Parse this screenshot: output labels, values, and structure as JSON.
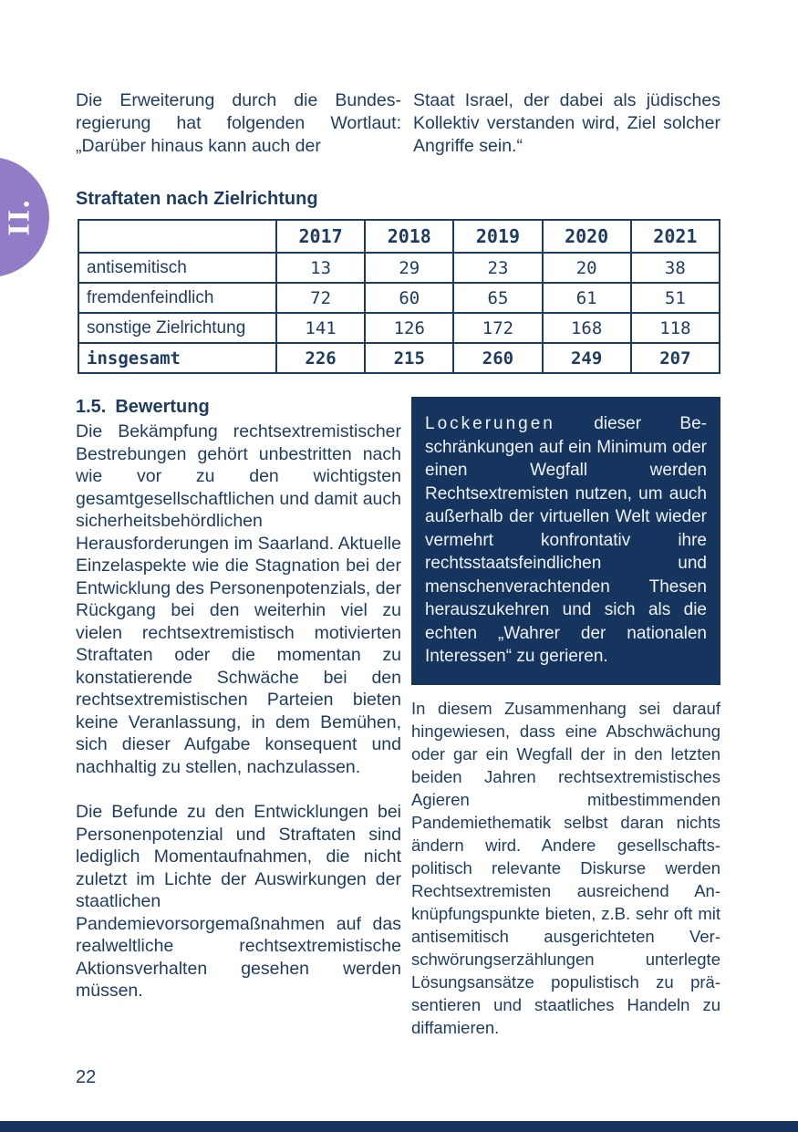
{
  "colors": {
    "text_navy": "#1e3c5f",
    "box_navy": "#15355e",
    "tab_purple": "#927cc7",
    "page_bg": "#ffffff"
  },
  "section_tab": {
    "label": "II."
  },
  "intro": {
    "left": "Die Erweiterung durch die Bundes­regierung hat folgenden Wortlaut: „Darüber hinaus kann auch der",
    "right": "Staat Israel, der dabei als jüdisches Kollektiv verstanden wird, Ziel sol­cher Angriffe sein.“"
  },
  "table_section": {
    "heading": "Straftaten nach Zielrichtung"
  },
  "table": {
    "columns": [
      "",
      "2017",
      "2018",
      "2019",
      "2020",
      "2021"
    ],
    "rows": [
      {
        "label": "antisemitisch",
        "values": [
          "13",
          "29",
          "23",
          "20",
          "38"
        ],
        "bold": false
      },
      {
        "label": "fremdenfeindlich",
        "values": [
          "72",
          "60",
          "65",
          "61",
          "51"
        ],
        "bold": false
      },
      {
        "label": "sonstige Zielrichtung",
        "values": [
          "141",
          "126",
          "172",
          "168",
          "118"
        ],
        "bold": false
      },
      {
        "label": "insgesamt",
        "values": [
          "226",
          "215",
          "260",
          "249",
          "207"
        ],
        "bold": true
      }
    ]
  },
  "bewertung": {
    "heading_number": "1.5.",
    "heading_text": "Bewertung",
    "paragraphs": [
      "Die Bekämpfung rechtsextremisti­scher Bestrebungen gehört unbe­stritten nach wie vor zu den wich­tigsten gesamtgesellschaftlichen und damit auch sicherheitsbe­hördlichen Herausforderungen im Saarland. Aktuelle Einzelaspekte wie die Stagnation bei der Entwick­lung des Personenpotenzials, der Rückgang bei den weiterhin viel zu vielen rechtsextremistisch moti­vierten Straftaten oder die momen­tan zu konstatierende Schwäche bei den rechtsextremistischen Par­teien bieten keine Veranlassung, in dem Bemühen, sich dieser Aufga­be konsequent und nachhaltig zu stellen, nachzulassen.",
      "Die Befunde zu den Entwicklungen bei Personenpotenzial und Strafta­ten sind lediglich Momentaufnah­men, die nicht zuletzt im Lichte der Auswirkungen der staatlichen Pandemievorsorgemaßnahmen auf das realweltliche rechtsextremis­tische Aktionsverhalten gesehen werden müssen."
    ]
  },
  "quote_box": {
    "lead": "Lockerungen",
    "rest": " dieser Be­schränkungen auf ein Minimum oder einen Wegfall werden Rechtsextremisten nutzen, um auch außerhalb der virtuellen Welt wieder vermehrt konfron­tativ ihre rechtsstaatsfeindli­chen und menschenverachten­den Thesen herauszukehren und sich als die echten „Wah­rer der nationalen Interessen“ zu gerieren."
  },
  "right_column": {
    "paragraph": "In diesem Zusammenhang sei darauf hingewiesen, dass eine Abschwä­chung oder gar ein Wegfall der in den letzten beiden Jahren rechtsextremis­tisches Agieren mitbestimmenden Pandemiethematik selbst daran nichts ändern wird. Andere gesellschafts­politisch relevante Diskurse werden Rechtsextremisten ausreichend An­knüpfungspunkte bieten, z.B. sehr oft mit antisemitisch ausgerichteten Ver­schwörungserzählungen unterlegte Lösungsansätze populistisch zu prä­sentieren und staatliches Handeln zu diffamieren."
  },
  "footer": {
    "page_number": "22"
  }
}
